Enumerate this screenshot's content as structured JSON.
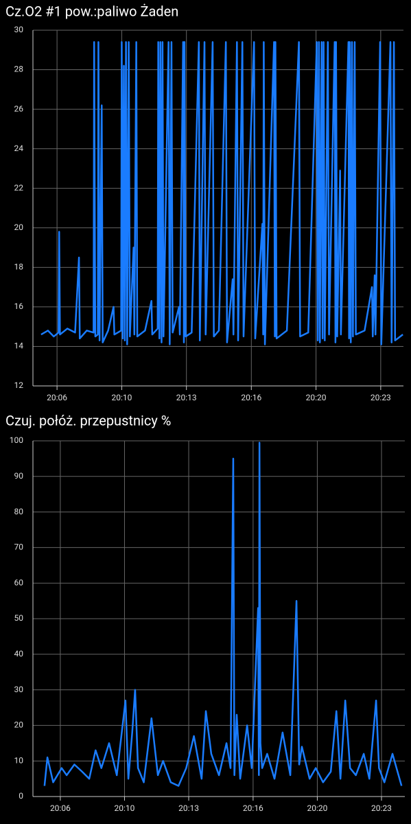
{
  "chart_data": [
    {
      "type": "line",
      "title": "Cz.O2 #1 pow.:paliwo  Żaden",
      "x": [
        5.85,
        6.2,
        6.5,
        6.75,
        6.78,
        6.82,
        7.2,
        7.6,
        7.8,
        7.84,
        8.2,
        8.55,
        8.58,
        8.64,
        8.77,
        8.8,
        8.86,
        8.97,
        9.02,
        9.3,
        9.58,
        9.62,
        9.97,
        10.0,
        10.05,
        10.11,
        10.16,
        10.22,
        10.28,
        10.36,
        10.42,
        10.61,
        10.65,
        10.75,
        10.8,
        11.2,
        11.53,
        11.57,
        11.85,
        11.88,
        11.94,
        11.99,
        12.05,
        12.1,
        12.15,
        12.41,
        12.47,
        12.56,
        12.62,
        12.95,
        12.99,
        13.16,
        13.2,
        13.23,
        13.29,
        13.6,
        13.97,
        14.02,
        14.26,
        14.32,
        14.68,
        14.74,
        15.0,
        15.36,
        15.42,
        15.71,
        15.75,
        15.93,
        15.99,
        16.21,
        16.27,
        16.81,
        16.87,
        17.24,
        17.28,
        17.31,
        17.37,
        17.84,
        17.88,
        17.91,
        17.97,
        18.5,
        19.12,
        19.18,
        19.6,
        20.04,
        20.09,
        20.15,
        20.2,
        20.29,
        20.34,
        20.39,
        20.45,
        20.61,
        20.67,
        20.96,
        21.0,
        21.03,
        21.09,
        21.24,
        21.28,
        21.67,
        21.7,
        21.74,
        21.79,
        21.85,
        21.9,
        21.99,
        22.05,
        22.5,
        22.88,
        22.92,
        23.02,
        23.06,
        23.3,
        23.36,
        23.83,
        23.89,
        24.01,
        24.07,
        24.47
      ],
      "values": [
        14.6,
        14.8,
        14.5,
        14.7,
        19.8,
        14.6,
        14.9,
        14.7,
        18.5,
        14.4,
        14.8,
        14.7,
        29.4,
        14.5,
        14.6,
        29.4,
        14.3,
        26.2,
        14.2,
        14.8,
        16.0,
        14.6,
        14.8,
        29.4,
        14.4,
        28.2,
        14.3,
        29.4,
        14.1,
        29.4,
        14.5,
        19.0,
        14.6,
        29.4,
        14.5,
        14.8,
        16.3,
        14.6,
        14.9,
        29.4,
        14.4,
        29.4,
        14.2,
        29.4,
        14.5,
        29.4,
        14.1,
        29.4,
        14.7,
        16.0,
        14.6,
        29.4,
        14.2,
        29.4,
        14.5,
        14.7,
        29.4,
        14.3,
        29.4,
        14.6,
        29.4,
        14.5,
        14.8,
        29.4,
        14.2,
        17.4,
        14.6,
        29.4,
        14.3,
        29.4,
        14.5,
        29.4,
        14.4,
        20.2,
        14.6,
        29.4,
        14.1,
        29.4,
        14.5,
        29.4,
        14.4,
        14.8,
        29.4,
        14.5,
        14.7,
        29.4,
        14.3,
        29.4,
        14.2,
        29.4,
        14.4,
        29.4,
        14.3,
        29.4,
        14.6,
        29.4,
        14.2,
        29.4,
        14.5,
        22.9,
        14.6,
        29.4,
        14.4,
        29.4,
        14.2,
        29.4,
        14.5,
        29.4,
        14.6,
        14.8,
        17.0,
        14.5,
        17.6,
        14.6,
        29.4,
        14.1,
        29.4,
        14.2,
        29.4,
        14.3,
        14.6
      ],
      "color": "#1a7cff",
      "xlim": [
        5.43,
        24.5
      ],
      "ylim": [
        12,
        30
      ],
      "yticks": [
        12,
        14,
        16,
        18,
        20,
        22,
        24,
        26,
        28,
        30
      ],
      "xticks": [
        {
          "value": 6.67,
          "label": "20:06"
        },
        {
          "value": 10.0,
          "label": "20:10"
        },
        {
          "value": 13.33,
          "label": "20:13"
        },
        {
          "value": 16.67,
          "label": "20:16"
        },
        {
          "value": 20.0,
          "label": "20:20"
        },
        {
          "value": 23.33,
          "label": "20:23"
        }
      ],
      "grid": true
    },
    {
      "type": "line",
      "title": "Czuj. połóż. przepustnicy  %",
      "x": [
        5.85,
        6.0,
        6.3,
        6.74,
        7.0,
        7.4,
        7.8,
        8.17,
        8.5,
        8.8,
        9.2,
        9.6,
        10.05,
        10.2,
        10.4,
        10.55,
        10.7,
        11.0,
        11.4,
        11.73,
        12.0,
        12.4,
        12.8,
        13.2,
        13.6,
        14.0,
        14.22,
        14.5,
        14.9,
        15.29,
        15.5,
        15.64,
        15.7,
        15.82,
        16.0,
        16.36,
        16.6,
        16.93,
        16.97,
        17.0,
        17.05,
        17.14,
        17.4,
        17.78,
        18.2,
        18.6,
        18.92,
        19.06,
        19.2,
        19.6,
        19.92,
        20.3,
        20.7,
        20.99,
        21.2,
        21.45,
        21.7,
        22.0,
        22.41,
        22.7,
        23.05,
        23.2,
        23.48,
        23.9,
        24.37
      ],
      "values": [
        3,
        11,
        4,
        8,
        6,
        9,
        7,
        5,
        13,
        8,
        15,
        6,
        27,
        5,
        18,
        30,
        8,
        4,
        22,
        6,
        10,
        4,
        3,
        8,
        17,
        5,
        24,
        12,
        6,
        15,
        8,
        95,
        6,
        23,
        5,
        20,
        8,
        53,
        6,
        99.5,
        15,
        8,
        12,
        5,
        18,
        6,
        55,
        9,
        14,
        5,
        8,
        4,
        7,
        24,
        5,
        27,
        8,
        6,
        12,
        5,
        27,
        8,
        4,
        12,
        3
      ],
      "color": "#1a7cff",
      "xlim": [
        5.25,
        24.54
      ],
      "ylim": [
        0,
        100
      ],
      "yticks": [
        0,
        10,
        20,
        30,
        40,
        50,
        60,
        70,
        80,
        90,
        100
      ],
      "xticks": [
        {
          "value": 6.67,
          "label": "20:06"
        },
        {
          "value": 10.0,
          "label": "20:10"
        },
        {
          "value": 13.33,
          "label": "20:13"
        },
        {
          "value": 16.67,
          "label": "20:16"
        },
        {
          "value": 20.0,
          "label": "20:20"
        },
        {
          "value": 23.33,
          "label": "20:23"
        }
      ],
      "grid": true
    }
  ]
}
